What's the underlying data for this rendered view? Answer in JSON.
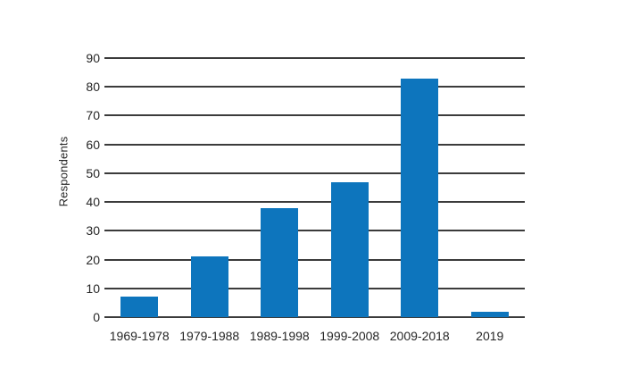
{
  "chart_data": {
    "type": "bar",
    "categories": [
      "1969-1978",
      "1979-1988",
      "1989-1998",
      "1999-2008",
      "2009-2018",
      "2019"
    ],
    "values": [
      7,
      21,
      38,
      47,
      83,
      2
    ],
    "title": "",
    "xlabel": "",
    "ylabel": "Respondents",
    "ylim": [
      0,
      90
    ],
    "ytick_step": 10,
    "grid": true,
    "legend": false,
    "bar_color": "#0d75bd",
    "gridline_color": "#3b3b3b",
    "text_color": "#262626",
    "background_color": "#ffffff"
  }
}
